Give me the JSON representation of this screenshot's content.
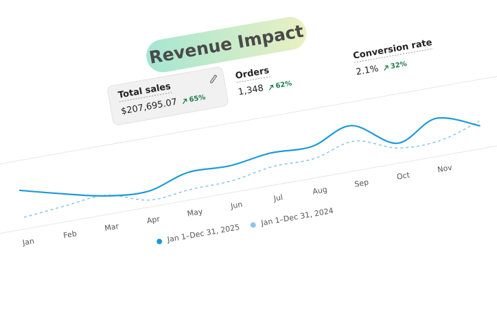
{
  "header": {
    "title": "Revenue Impact"
  },
  "metrics": [
    {
      "label": "Total sales",
      "value": "$207,695.07",
      "change": "65%"
    },
    {
      "label": "Orders",
      "value": "1,348",
      "change": "62%"
    },
    {
      "label": "Conversion rate",
      "value": "2.1%",
      "change": "32%"
    }
  ],
  "chart_data": {
    "type": "line",
    "categories": [
      "Jan",
      "Feb",
      "Mar",
      "Apr",
      "May",
      "Jun",
      "Jul",
      "Aug",
      "Sep",
      "Oct",
      "Nov",
      null
    ],
    "series": [
      {
        "name": "Jan 1–Dec 31, 2025",
        "color": "#1a9ad6",
        "dashed": false,
        "values": [
          57,
          41,
          27,
          23,
          40,
          39,
          47,
          46,
          66,
          29,
          55,
          33
        ]
      },
      {
        "name": "Jan 1–Dec 31, 2024",
        "color": "#8ec6ea",
        "dashed": true,
        "values": [
          17,
          23,
          28,
          10,
          15,
          17,
          27,
          28,
          43,
          22,
          22,
          40
        ]
      }
    ],
    "ylim": [
      0,
      100
    ],
    "grid": true
  }
}
